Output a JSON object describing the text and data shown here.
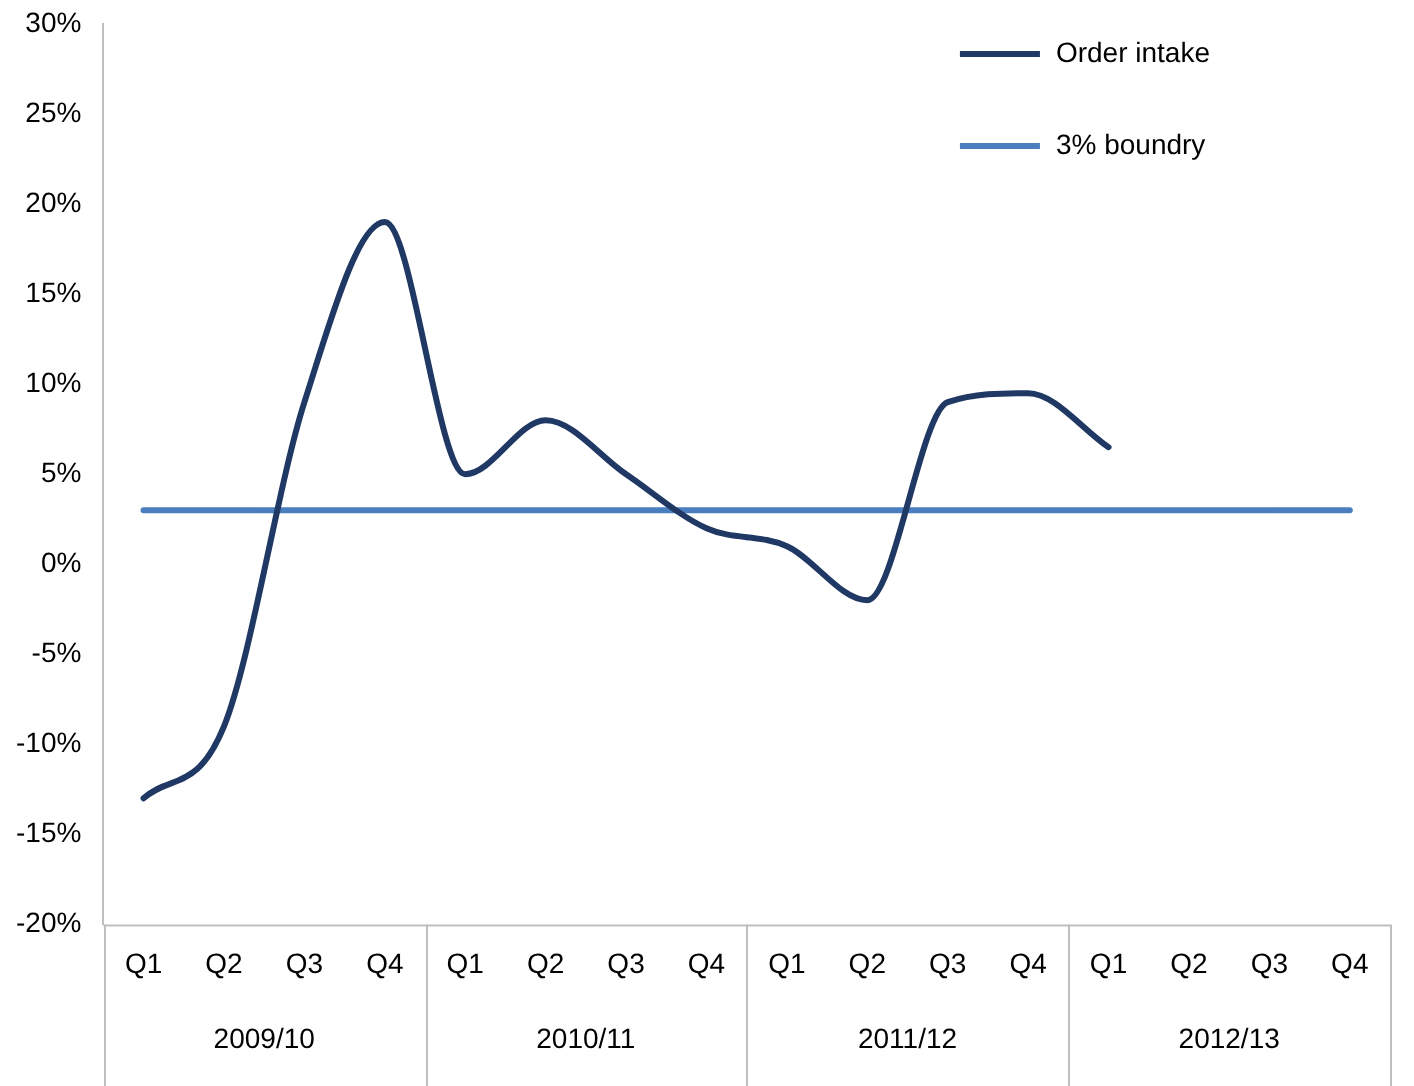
{
  "chart_data": {
    "type": "line",
    "categories": [
      "Q1",
      "Q2",
      "Q3",
      "Q4",
      "Q1",
      "Q2",
      "Q3",
      "Q4",
      "Q1",
      "Q2",
      "Q3",
      "Q4",
      "Q1",
      "Q2",
      "Q3",
      "Q4"
    ],
    "series": [
      {
        "name": "Order intake",
        "color": "#1f3864",
        "values": [
          -13,
          -9,
          9,
          19,
          5,
          8,
          5,
          2,
          1,
          -2,
          9,
          9.5,
          6.5,
          null,
          null,
          null
        ]
      },
      {
        "name": "3% boundry",
        "color": "#4a7ebf",
        "values": [
          3,
          3,
          3,
          3,
          3,
          3,
          3,
          3,
          3,
          3,
          3,
          3,
          3,
          3,
          3,
          3
        ]
      }
    ],
    "annotations": [
      "2009/10",
      "2010/11",
      "2011/12",
      "2012/13"
    ],
    "ylim": [
      -20,
      30
    ],
    "yticks": [
      {
        "value": -20,
        "label": "-20%"
      },
      {
        "value": -15,
        "label": "-15%"
      },
      {
        "value": -10,
        "label": "-10%"
      },
      {
        "value": -5,
        "label": "-5%"
      },
      {
        "value": 0,
        "label": "0%"
      },
      {
        "value": 5,
        "label": "5%"
      },
      {
        "value": 10,
        "label": "10%"
      },
      {
        "value": 15,
        "label": "15%"
      },
      {
        "value": 20,
        "label": "20%"
      },
      {
        "value": 25,
        "label": "25%"
      },
      {
        "value": 30,
        "label": "30%"
      }
    ],
    "grid": false,
    "legend": "top right",
    "marker": "none",
    "line_style": "solid"
  }
}
